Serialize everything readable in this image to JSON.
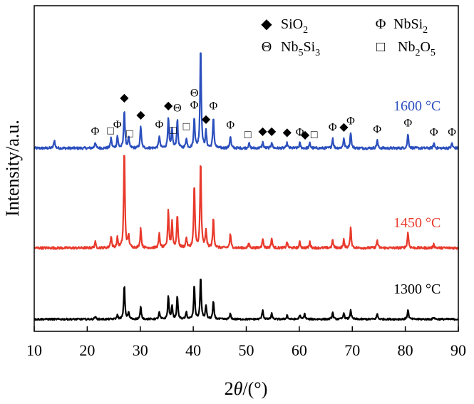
{
  "chart_data": {
    "type": "line",
    "xlabel_prefix": "2",
    "xlabel_theta": "θ",
    "xlabel_suffix": "/(°)",
    "ylabel": "Intensity/a.u.",
    "xlim": [
      10,
      90
    ],
    "xticks": [
      10,
      20,
      30,
      40,
      50,
      60,
      70,
      80,
      90
    ],
    "y_ticks_shown": false,
    "legend": [
      {
        "symbol": "◆",
        "name": "SiO",
        "sub": "2",
        "name2": "",
        "sub2": ""
      },
      {
        "symbol": "Φ",
        "name": "NbSi",
        "sub": "2",
        "name2": "",
        "sub2": ""
      },
      {
        "symbol": "Θ",
        "name": "Nb",
        "sub": "5",
        "name2": "Si",
        "sub2": "3"
      },
      {
        "symbol": "□",
        "name": "Nb",
        "sub": "2",
        "name2": "O",
        "sub2": "5"
      }
    ],
    "series": [
      {
        "name": "1600 °C",
        "color": "#2b4fbd",
        "baseline": 0.0,
        "noise": 0.012,
        "peaks": [
          [
            13.8,
            0.08
          ],
          [
            21.5,
            0.06
          ],
          [
            24.5,
            0.1
          ],
          [
            25.7,
            0.12
          ],
          [
            27.0,
            0.38
          ],
          [
            27.8,
            0.1
          ],
          [
            30.1,
            0.22
          ],
          [
            33.6,
            0.12
          ],
          [
            35.3,
            0.3
          ],
          [
            36.0,
            0.18
          ],
          [
            37.0,
            0.28
          ],
          [
            38.7,
            0.1
          ],
          [
            40.2,
            0.3
          ],
          [
            41.4,
            1.0
          ],
          [
            42.4,
            0.16
          ],
          [
            43.8,
            0.3
          ],
          [
            47.0,
            0.12
          ],
          [
            50.5,
            0.05
          ],
          [
            53.1,
            0.06
          ],
          [
            54.8,
            0.06
          ],
          [
            57.7,
            0.05
          ],
          [
            60.1,
            0.05
          ],
          [
            62.0,
            0.05
          ],
          [
            66.3,
            0.1
          ],
          [
            68.4,
            0.1
          ],
          [
            69.7,
            0.16
          ],
          [
            74.7,
            0.08
          ],
          [
            80.5,
            0.14
          ],
          [
            85.4,
            0.05
          ],
          [
            88.8,
            0.05
          ]
        ]
      },
      {
        "name": "1450 °C",
        "color": "#e8392b",
        "baseline": 0.0,
        "noise": 0.012,
        "peaks": [
          [
            21.5,
            0.06
          ],
          [
            24.5,
            0.12
          ],
          [
            25.7,
            0.1
          ],
          [
            27.0,
            1.0
          ],
          [
            27.8,
            0.12
          ],
          [
            30.1,
            0.2
          ],
          [
            33.6,
            0.14
          ],
          [
            35.3,
            0.38
          ],
          [
            36.0,
            0.26
          ],
          [
            37.0,
            0.34
          ],
          [
            38.7,
            0.1
          ],
          [
            40.2,
            0.64
          ],
          [
            41.4,
            0.88
          ],
          [
            42.4,
            0.18
          ],
          [
            43.8,
            0.3
          ],
          [
            47.0,
            0.14
          ],
          [
            50.5,
            0.05
          ],
          [
            53.1,
            0.1
          ],
          [
            54.8,
            0.1
          ],
          [
            57.7,
            0.06
          ],
          [
            60.1,
            0.06
          ],
          [
            62.0,
            0.06
          ],
          [
            66.3,
            0.08
          ],
          [
            68.4,
            0.08
          ],
          [
            69.7,
            0.2
          ],
          [
            74.7,
            0.08
          ],
          [
            80.5,
            0.16
          ],
          [
            85.4,
            0.04
          ]
        ]
      },
      {
        "name": "1300 °C",
        "color": "#000000",
        "baseline": 0.0,
        "noise": 0.012,
        "peaks": [
          [
            21.5,
            0.04
          ],
          [
            25.7,
            0.06
          ],
          [
            27.0,
            0.5
          ],
          [
            27.8,
            0.1
          ],
          [
            30.1,
            0.18
          ],
          [
            33.6,
            0.1
          ],
          [
            35.3,
            0.34
          ],
          [
            36.0,
            0.2
          ],
          [
            37.0,
            0.34
          ],
          [
            38.7,
            0.1
          ],
          [
            40.2,
            0.5
          ],
          [
            41.4,
            0.62
          ],
          [
            42.4,
            0.2
          ],
          [
            43.8,
            0.26
          ],
          [
            47.0,
            0.08
          ],
          [
            53.1,
            0.14
          ],
          [
            54.8,
            0.08
          ],
          [
            57.7,
            0.06
          ],
          [
            60.1,
            0.06
          ],
          [
            61.0,
            0.08
          ],
          [
            66.3,
            0.1
          ],
          [
            68.4,
            0.1
          ],
          [
            69.7,
            0.14
          ],
          [
            74.7,
            0.08
          ],
          [
            80.5,
            0.14
          ],
          [
            85.4,
            0.03
          ]
        ]
      }
    ],
    "phase_markers": [
      {
        "x": 21.5,
        "symbol": "Φ"
      },
      {
        "x": 24.4,
        "symbol": "□"
      },
      {
        "x": 25.7,
        "symbol": "Φ"
      },
      {
        "x": 27.0,
        "symbol": "◆"
      },
      {
        "x": 28.0,
        "symbol": "□"
      },
      {
        "x": 30.1,
        "symbol": "◆"
      },
      {
        "x": 33.6,
        "symbol": "Φ"
      },
      {
        "x": 35.3,
        "symbol": "◆"
      },
      {
        "x": 36.2,
        "symbol": "□"
      },
      {
        "x": 37.0,
        "symbol": "Θ"
      },
      {
        "x": 38.7,
        "symbol": "□"
      },
      {
        "x": 40.2,
        "symbol": "Φ"
      },
      {
        "x": 40.2,
        "symbol": "Θ"
      },
      {
        "x": 42.4,
        "symbol": "◆"
      },
      {
        "x": 43.8,
        "symbol": "Φ"
      },
      {
        "x": 47.0,
        "symbol": "Φ"
      },
      {
        "x": 50.3,
        "symbol": "□"
      },
      {
        "x": 53.1,
        "symbol": "◆"
      },
      {
        "x": 54.8,
        "symbol": "◆"
      },
      {
        "x": 57.7,
        "symbol": "◆"
      },
      {
        "x": 60.1,
        "symbol": "Φ"
      },
      {
        "x": 61.1,
        "symbol": "◆"
      },
      {
        "x": 62.8,
        "symbol": "□"
      },
      {
        "x": 66.3,
        "symbol": "Φ"
      },
      {
        "x": 68.4,
        "symbol": "◆"
      },
      {
        "x": 69.7,
        "symbol": "Φ"
      },
      {
        "x": 74.7,
        "symbol": "Φ"
      },
      {
        "x": 80.5,
        "symbol": "Φ"
      },
      {
        "x": 85.4,
        "symbol": "Φ"
      },
      {
        "x": 88.8,
        "symbol": "Φ"
      }
    ]
  }
}
